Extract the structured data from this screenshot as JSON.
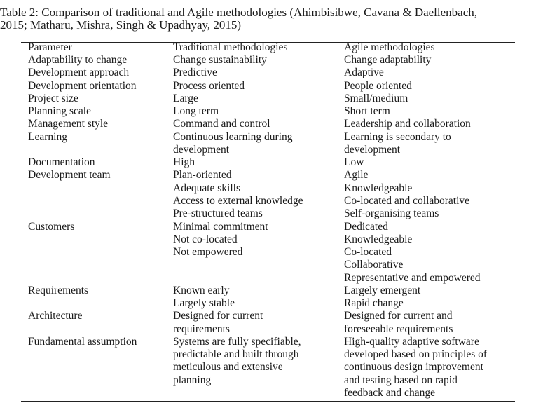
{
  "caption": {
    "lines": [
      "Table 2:  Comparison of traditional and Agile methodologies (Ahimbisibwe, Cavana & Daellenbach,",
      "2015; Matharu, Mishra, Singh & Upadhyay, 2015)"
    ]
  },
  "table": {
    "header": [
      "Parameter",
      "Traditional methodologies",
      "Agile methodologies"
    ],
    "rows": [
      [
        [
          "Adaptability to change"
        ],
        [
          "Change sustainability"
        ],
        [
          "Change adaptability"
        ]
      ],
      [
        [
          "Development approach"
        ],
        [
          "Predictive"
        ],
        [
          "Adaptive"
        ]
      ],
      [
        [
          "Development orientation"
        ],
        [
          "Process oriented"
        ],
        [
          "People oriented"
        ]
      ],
      [
        [
          "Project size"
        ],
        [
          "Large"
        ],
        [
          "Small/medium"
        ]
      ],
      [
        [
          "Planning scale"
        ],
        [
          "Long term"
        ],
        [
          "Short term"
        ]
      ],
      [
        [
          "Management style"
        ],
        [
          "Command and control"
        ],
        [
          "Leadership and collaboration"
        ]
      ],
      [
        [
          "Learning"
        ],
        [
          "Continuous learning during",
          "development"
        ],
        [
          "Learning is secondary to",
          "development"
        ]
      ],
      [
        [
          "Documentation"
        ],
        [
          "High"
        ],
        [
          "Low"
        ]
      ],
      [
        [
          "Development team"
        ],
        [
          "Plan-oriented",
          "Adequate skills",
          "Access to external knowledge",
          "Pre-structured teams"
        ],
        [
          "Agile",
          "Knowledgeable",
          "Co-located and collaborative",
          "Self-organising teams"
        ]
      ],
      [
        [
          "Customers"
        ],
        [
          "Minimal commitment",
          "Not co-located",
          "Not empowered"
        ],
        [
          "Dedicated",
          "Knowledgeable",
          "Co-located",
          "Collaborative",
          "Representative and empowered"
        ]
      ],
      [
        [
          "Requirements"
        ],
        [
          "Known early",
          "Largely stable"
        ],
        [
          "Largely emergent",
          "Rapid change"
        ]
      ],
      [
        [
          "Architecture"
        ],
        [
          "Designed for current",
          "requirements"
        ],
        [
          "Designed for current and",
          "foreseeable requirements"
        ]
      ],
      [
        [
          "Fundamental assumption"
        ],
        [
          "Systems are fully specifiable,",
          "predictable and built through",
          "meticulous and extensive",
          "planning"
        ],
        [
          "High-quality adaptive software",
          "developed based on principles of",
          "continuous design improvement",
          "and testing based on rapid",
          "feedback and change"
        ]
      ]
    ]
  }
}
